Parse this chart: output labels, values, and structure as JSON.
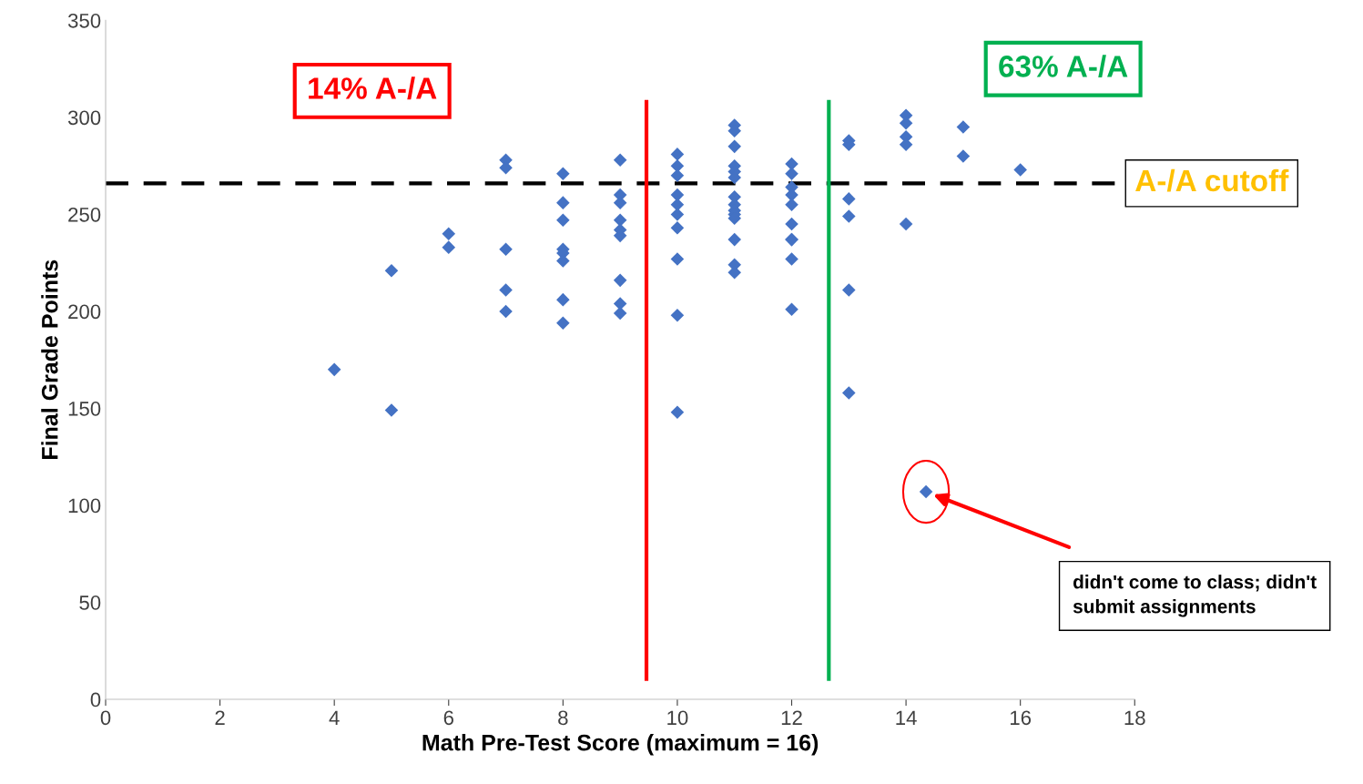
{
  "chart_data": {
    "type": "scatter",
    "xlabel": "Math Pre-Test Score (maximum = 16)",
    "ylabel": "Final Grade Points",
    "x": [
      4,
      5,
      5,
      6,
      6,
      7,
      7,
      7,
      7,
      7,
      8,
      8,
      8,
      8,
      8,
      8,
      8,
      8,
      9,
      9,
      9,
      9,
      9,
      9,
      9,
      9,
      9,
      10,
      10,
      10,
      10,
      10,
      10,
      10,
      10,
      10,
      10,
      11,
      11,
      11,
      11,
      11,
      11,
      11,
      11,
      11,
      11,
      11,
      11,
      11,
      11,
      12,
      12,
      12,
      12,
      12,
      12,
      12,
      12,
      12,
      12,
      13,
      13,
      13,
      13,
      13,
      13,
      14,
      14,
      14,
      14,
      14,
      14.35,
      15,
      15,
      16
    ],
    "values": [
      170,
      221,
      149,
      240,
      233,
      278,
      274,
      232,
      211,
      200,
      271,
      256,
      247,
      232,
      230,
      226,
      206,
      194,
      278,
      260,
      256,
      247,
      242,
      239,
      216,
      204,
      199,
      281,
      275,
      270,
      260,
      255,
      250,
      243,
      227,
      198,
      148,
      296,
      293,
      285,
      275,
      272,
      269,
      259,
      255,
      252,
      250,
      248,
      237,
      224,
      220,
      276,
      271,
      264,
      260,
      255,
      245,
      237,
      237,
      227,
      201,
      288,
      286,
      258,
      249,
      211,
      158,
      301,
      297,
      290,
      286,
      245,
      107,
      295,
      280,
      273
    ],
    "color": "#4472c4",
    "marker": "diamond",
    "xlim": [
      0,
      18
    ],
    "xticks": [
      0,
      2,
      4,
      6,
      8,
      10,
      12,
      14,
      16,
      18
    ],
    "ylim": [
      0,
      350
    ],
    "yticks": [
      0,
      50,
      100,
      150,
      200,
      250,
      300,
      350
    ],
    "grid": false,
    "ref_lines": [
      {
        "axis": "y",
        "value": 266,
        "label": "A-/A cutoff",
        "color": "#000000",
        "line_style": "dashed"
      },
      {
        "axis": "x",
        "value": 9.46,
        "color": "#ff0000",
        "line_style": "solid"
      },
      {
        "axis": "x",
        "value": 12.65,
        "color": "#00b050",
        "line_style": "solid"
      }
    ],
    "annotations": [
      "14% A-/A",
      "63% A-/A",
      "didn't come to class; didn't submit assignments"
    ]
  }
}
